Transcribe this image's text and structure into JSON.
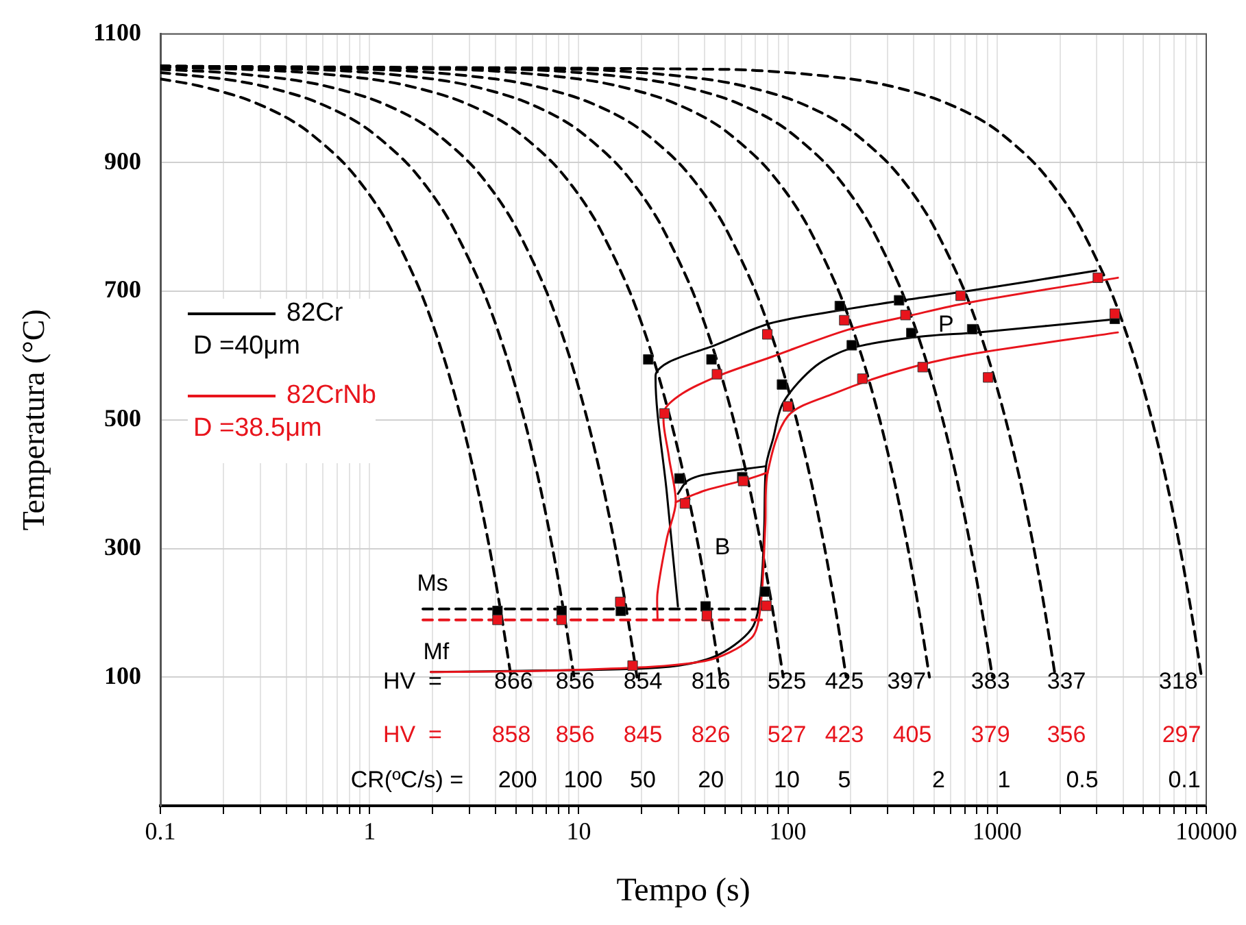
{
  "chart_data": {
    "type": "line",
    "xlabel": "Tempo (s)",
    "ylabel": "Temperatura (°C)",
    "log": "x",
    "grid": true,
    "legend": "left",
    "xlim": [
      0.1,
      10000
    ],
    "ylim": [
      -100,
      1100
    ],
    "xticks": [
      0.1,
      {
        "value": 0.2,
        "label": null
      },
      {
        "value": 0.3,
        "label": null
      },
      {
        "value": 0.4,
        "label": null
      },
      {
        "value": 0.5,
        "label": null
      },
      {
        "value": 0.6,
        "label": null
      },
      {
        "value": 0.7,
        "label": null
      },
      {
        "value": 0.8,
        "label": null
      },
      {
        "value": 0.9,
        "label": null
      },
      1,
      {
        "value": 2,
        "label": null
      },
      {
        "value": 3,
        "label": null
      },
      {
        "value": 4,
        "label": null
      },
      {
        "value": 5,
        "label": null
      },
      {
        "value": 6,
        "label": null
      },
      {
        "value": 7,
        "label": null
      },
      {
        "value": 8,
        "label": null
      },
      {
        "value": 9,
        "label": null
      },
      10,
      {
        "value": 20,
        "label": null
      },
      {
        "value": 30,
        "label": null
      },
      {
        "value": 40,
        "label": null
      },
      {
        "value": 50,
        "label": null
      },
      {
        "value": 60,
        "label": null
      },
      {
        "value": 70,
        "label": null
      },
      {
        "value": 80,
        "label": null
      },
      {
        "value": 90,
        "label": null
      },
      100,
      {
        "value": 200,
        "label": null
      },
      {
        "value": 300,
        "label": null
      },
      {
        "value": 400,
        "label": null
      },
      {
        "value": 500,
        "label": null
      },
      {
        "value": 600,
        "label": null
      },
      {
        "value": 700,
        "label": null
      },
      {
        "value": 800,
        "label": null
      },
      {
        "value": 900,
        "label": null
      },
      1000,
      {
        "value": 2000,
        "label": null
      },
      {
        "value": 3000,
        "label": null
      },
      {
        "value": 4000,
        "label": null
      },
      {
        "value": 5000,
        "label": null
      },
      {
        "value": 6000,
        "label": null
      },
      {
        "value": 7000,
        "label": null
      },
      {
        "value": 8000,
        "label": null
      },
      {
        "value": 9000,
        "label": null
      },
      10000
    ],
    "yticks": [
      100,
      300,
      500,
      700,
      900,
      1100
    ],
    "series": [
      {
        "color": "#000000",
        "line_style": "dashed",
        "marker": "none",
        "x": [
          0.1,
          0.15,
          0.25,
          0.375,
          0.5,
          0.75,
          1,
          1.25,
          1.75,
          2.25,
          2.75,
          3.25,
          3.75,
          4.25,
          4.75
        ],
        "values": [
          1030,
          1020,
          1000,
          975,
          950,
          900,
          850,
          800,
          700,
          600,
          500,
          400,
          300,
          200,
          100
        ]
      },
      {
        "color": "#000000",
        "line_style": "dashed",
        "marker": "none",
        "x": [
          0.1,
          0.2,
          0.3,
          0.5,
          0.75,
          1,
          1.5,
          2,
          2.5,
          3.5,
          4.5,
          5.5,
          6.5,
          7.5,
          8.5,
          9.5
        ],
        "values": [
          1040,
          1030,
          1020,
          1000,
          975,
          950,
          900,
          850,
          800,
          700,
          600,
          500,
          400,
          300,
          200,
          100
        ]
      },
      {
        "color": "#000000",
        "line_style": "dashed",
        "marker": "none",
        "x": [
          0.1,
          0.2,
          0.4,
          0.6,
          1,
          1.5,
          2,
          3,
          4,
          5,
          7,
          9,
          11,
          13,
          15,
          17,
          19
        ],
        "values": [
          1045,
          1040,
          1030,
          1020,
          1000,
          975,
          950,
          900,
          850,
          800,
          700,
          600,
          500,
          400,
          300,
          200,
          100
        ]
      },
      {
        "color": "#000000",
        "line_style": "dashed",
        "marker": "none",
        "x": [
          0.1,
          0.25,
          0.5,
          1,
          1.5,
          2.5,
          3.75,
          5,
          7.5,
          10,
          12.5,
          17.5,
          22.5,
          27.5,
          32.5,
          37.5,
          42.5,
          47.5
        ],
        "values": [
          1048,
          1045,
          1040,
          1030,
          1020,
          1000,
          975,
          950,
          900,
          850,
          800,
          700,
          600,
          500,
          400,
          300,
          200,
          100
        ]
      },
      {
        "color": "#000000",
        "line_style": "dashed",
        "marker": "none",
        "x": [
          0.1,
          0.5,
          1,
          2,
          3,
          5,
          7.5,
          10,
          15,
          20,
          25,
          35,
          45,
          55,
          65,
          75,
          85,
          95
        ],
        "values": [
          1049,
          1045,
          1040,
          1030,
          1020,
          1000,
          975,
          950,
          900,
          850,
          800,
          700,
          600,
          500,
          400,
          300,
          200,
          100
        ]
      },
      {
        "color": "#000000",
        "line_style": "dashed",
        "marker": "none",
        "x": [
          0.1,
          1,
          2,
          4,
          6,
          10,
          15,
          20,
          30,
          40,
          50,
          70,
          90,
          110,
          130,
          150,
          170,
          190
        ],
        "values": [
          1050,
          1045,
          1040,
          1030,
          1020,
          1000,
          975,
          950,
          900,
          850,
          800,
          700,
          600,
          500,
          400,
          300,
          200,
          100
        ]
      },
      {
        "color": "#000000",
        "line_style": "dashed",
        "marker": "none",
        "x": [
          0.1,
          2.5,
          5,
          10,
          15,
          25,
          37.5,
          50,
          75,
          100,
          125,
          175,
          225,
          275,
          325,
          375,
          425,
          475
        ],
        "values": [
          1050,
          1045,
          1040,
          1030,
          1020,
          1000,
          975,
          950,
          900,
          850,
          800,
          700,
          600,
          500,
          400,
          300,
          200,
          100
        ]
      },
      {
        "color": "#000000",
        "line_style": "dashed",
        "marker": "none",
        "x": [
          0.1,
          5,
          10,
          20,
          30,
          50,
          75,
          100,
          150,
          200,
          250,
          350,
          450,
          550,
          650,
          750,
          850,
          950
        ],
        "values": [
          1050,
          1045,
          1040,
          1030,
          1020,
          1000,
          975,
          950,
          900,
          850,
          800,
          700,
          600,
          500,
          400,
          300,
          200,
          100
        ]
      },
      {
        "color": "#000000",
        "line_style": "dashed",
        "marker": "none",
        "x": [
          0.1,
          10,
          20,
          40,
          60,
          100,
          150,
          200,
          300,
          400,
          500,
          700,
          900,
          1100,
          1300,
          1500,
          1700,
          1900
        ],
        "values": [
          1050,
          1045,
          1040,
          1030,
          1020,
          1000,
          975,
          950,
          900,
          850,
          800,
          700,
          600,
          500,
          400,
          300,
          200,
          100
        ]
      },
      {
        "color": "#000000",
        "line_style": "dashed",
        "marker": "none",
        "x": [
          0.1,
          50,
          100,
          200,
          300,
          500,
          750,
          1000,
          1500,
          2000,
          2500,
          3500,
          4500,
          5500,
          6500,
          7500,
          8500,
          9500
        ],
        "values": [
          1050,
          1045,
          1040,
          1030,
          1020,
          1000,
          975,
          950,
          900,
          850,
          800,
          700,
          600,
          500,
          400,
          300,
          200,
          100
        ]
      },
      {
        "name": "82Cr",
        "color": "#000000",
        "marker": "none",
        "x": [
          29.8,
          26.4,
          23.3,
          27,
          44.8,
          82,
          183,
          357,
          716,
          2978
        ],
        "values": [
          210,
          385,
          569,
          590,
          616,
          650,
          671,
          686,
          700,
          732
        ]
      },
      {
        "color": "#000000",
        "marker": "none",
        "x": [
          1.96,
          5.4,
          24.3,
          44.6,
          67,
          74,
          77,
          78.6,
          85,
          95,
          136,
          204,
          417,
          806,
          3780
        ],
        "values": [
          108,
          110,
          115,
          132,
          175,
          231,
          330,
          428,
          471,
          527,
          584,
          612,
          629,
          636,
          657
        ]
      },
      {
        "color": "#000000",
        "marker": "none",
        "x": [
          29.8,
          33,
          40.3,
          78.6
        ],
        "values": [
          385,
          405,
          415,
          428
        ]
      },
      {
        "color": "#000000",
        "marker": "none",
        "line_style": "dashed",
        "x": [
          1.8,
          80
        ],
        "values": [
          206,
          206
        ]
      },
      {
        "name": "82CrNb",
        "color": "#e8141c",
        "marker": "none",
        "x": [
          23.8,
          23.8,
          26.4,
          29.1,
          27,
          25.6,
          31.3,
          47,
          82,
          193,
          370,
          722,
          3780
        ],
        "values": [
          192,
          231,
          316,
          372,
          442,
          513,
          541,
          569,
          597,
          640,
          661,
          682,
          721
        ]
      },
      {
        "color": "#e8141c",
        "marker": "none",
        "x": [
          1.96,
          8.9,
          40,
          67,
          74,
          78,
          80,
          100,
          166,
          338,
          716,
          3780
        ],
        "values": [
          108,
          111,
          125,
          161,
          210,
          337,
          418,
          506,
          541,
          576,
          601,
          636
        ]
      },
      {
        "color": "#e8141c",
        "marker": "none",
        "x": [
          29.1,
          40,
          63,
          80
        ],
        "values": [
          372,
          390,
          407,
          418
        ]
      },
      {
        "color": "#e8141c",
        "marker": "none",
        "line_style": "dashed",
        "x": [
          1.8,
          80
        ],
        "values": [
          189,
          189
        ]
      },
      {
        "type": "scatter",
        "color": "#000000",
        "marker": "square",
        "x": [
          21.5,
          43.1,
          93.7,
          30.3,
          60.5,
          77.7,
          4.09,
          8.28,
          15.9,
          40.4,
          177,
          340,
          202,
          389,
          760,
          3654
        ],
        "values": [
          594,
          594,
          555,
          409,
          411,
          233,
          203,
          203,
          203,
          210,
          677,
          686,
          616,
          635,
          641,
          657
        ]
      },
      {
        "type": "scatter",
        "color": "#e8141c",
        "marker": "square",
        "x": [
          25.7,
          45.8,
          79.7,
          100,
          32.2,
          61.1,
          78.9,
          4.09,
          8.28,
          15.8,
          41,
          18.1,
          186,
          365,
          670,
          3034,
          3654,
          227,
          441,
          906
        ],
        "values": [
          510,
          571,
          633,
          521,
          370,
          405,
          211,
          189,
          189,
          217,
          196,
          118,
          655,
          663,
          693,
          721,
          665,
          564,
          582,
          566
        ]
      }
    ],
    "annotations": [
      "D =40μm",
      "D =38.5μm",
      "HV  =",
      "866",
      "856",
      "854",
      "816",
      "525",
      "425",
      "397",
      "383",
      "337",
      "318",
      "HV  =",
      "858",
      "856",
      "845",
      "826",
      "527",
      "423",
      "405",
      "379",
      "356",
      "297",
      "CR(ºC/s) =",
      "200",
      "100",
      "50",
      "20",
      "10",
      "5",
      "2",
      "1",
      "0.5",
      "0.1",
      "B",
      {
        "text": "Ms",
        "x": 1.8,
        "y": 206
      },
      {
        "text": "Mf",
        "x": 1.96,
        "y": 108
      },
      {
        "text": "P",
        "x": 760,
        "y": 641
      }
    ]
  }
}
